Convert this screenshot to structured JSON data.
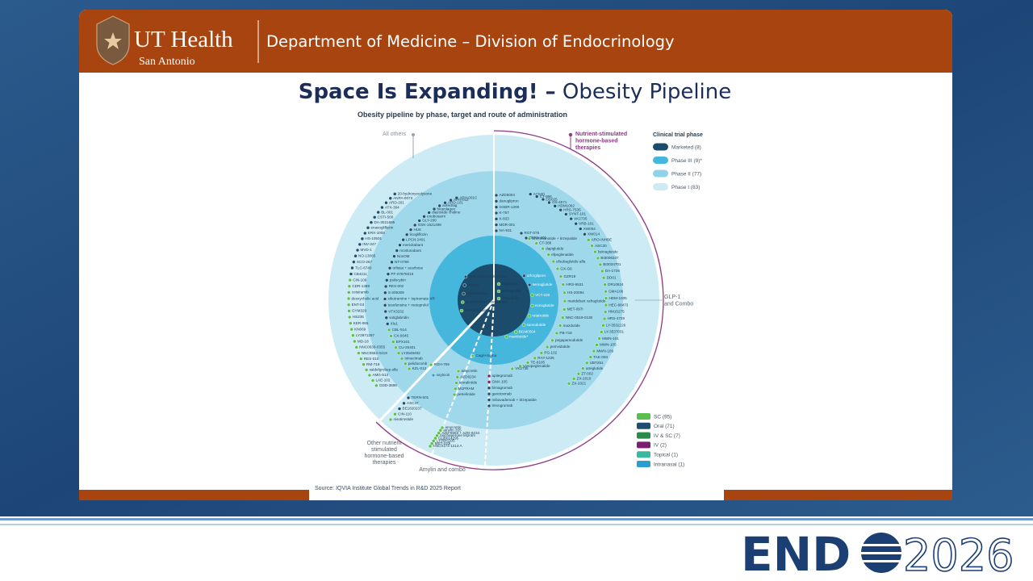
{
  "header": {
    "logo_name": "UT Health",
    "logo_location": "San Antonio",
    "department": "Department of Medicine – Division of Endocrinology"
  },
  "slide": {
    "title_bold": "Space Is Expanding! –",
    "title_rest": "Obesity Pipeline",
    "chart_title": "Obesity pipeline by phase, target and route of administration",
    "source": "Source: IQVIA Institute Global Trends in R&D 2025  Report"
  },
  "segments": {
    "all_others": "All others",
    "nsh": [
      "Nutrient-stimulated",
      "hormone-based",
      "therapies"
    ],
    "glp1": [
      "GLP-1",
      "and Combo"
    ],
    "other_nsh": [
      "Other nutrient",
      "stimulated",
      "hormone-based",
      "therapies"
    ],
    "amylin": "Amylin and combo"
  },
  "phase_legend": {
    "title": "Clinical trial phase",
    "items": [
      "Marketed (8)",
      "Phase III (9)*",
      "Phase II (77)",
      "Phase I (83)"
    ]
  },
  "route_legend": {
    "items": [
      "SC (95)",
      "Oral (71)",
      "IV & SC (7)",
      "IV (2)",
      "Topical (1)",
      "Intranasal (1)"
    ]
  },
  "drug_groups": [
    {
      "items": [
        "20-hydroxyecdysone",
        "ANPA-0073",
        "ARD-201",
        "ATX-304",
        "BL-001",
        "CSTI-500",
        "DA-3021685",
        "enavogliflozin",
        "ERX-1000",
        "HS-10501",
        "INV-347",
        "MVD-1",
        "NO-13065",
        "SCO-267",
        "TLC-6740",
        "CB4211",
        "CIN-109",
        "CDR-1389",
        "cotsiramib",
        "deoxycholic acid",
        "ENT-03",
        "GYM329",
        "HS235",
        "KER-065",
        "KN069",
        "LY3971297",
        "MD-18",
        "NNC0638-0355",
        "NNC0662-0419",
        "RES-010",
        "RM-718",
        "saldefgrobep alfa",
        "AMG-513",
        "LAE-102",
        "GDD-3898"
      ]
    },
    {
      "items": [
        "APH-001C",
        "APH-012",
        "ARD-101",
        "aofedrag",
        "bioenlagon",
        "diazoxide choline",
        "enobosarm",
        "GLY-200",
        "GSK-1521498",
        "HU6",
        "licogliflozin",
        "LPCN 2401",
        "mericitabant",
        "monlunabant",
        "NovOM",
        "NT-0796",
        "orlistat + acarbose",
        "PF-07976016",
        "psilocybin",
        "REX-002",
        "S-309309",
        "sibutramine + topiramate XR",
        "tesofensine + metoprolol",
        "VTX3232",
        "vutiglabridin",
        "Xlu1",
        "CBL-514",
        "CX-9045",
        "EPX101",
        "CU-20401",
        "LY3549492",
        "nimacimab",
        "pelidocomb",
        "KZL-012"
      ]
    },
    {
      "items": [
        "TERN-501",
        "ASC47",
        "BE1820237",
        "CIN-110",
        "nisotirostide"
      ]
    },
    {
      "items": [
        "amycretin",
        "amylin 355",
        "AZD-9550 + AZD-6234",
        "biochaperone lispram",
        "GUB014295",
        "LY3541105",
        "MET-233i",
        "NNC0174-1213 A"
      ]
    },
    {
      "items": [
        "amycretin",
        "AZD6234",
        "eloralintide",
        "M1PRAM",
        "petrelintide"
      ]
    },
    {
      "items": [
        "apitegromab",
        "GMA 105",
        "bimagrumab",
        "garetosmab",
        "mibavademab + tirzepatide",
        "trevogrumab"
      ]
    },
    {
      "items": [
        "AC530",
        "CT-996",
        "DD025",
        "GS-4571",
        "HDM1002",
        "HRS-7535",
        "SYNT-101",
        "VK2735",
        "VRB-101",
        "XW004",
        "XW014",
        "ARO-INHBE",
        "ASC30",
        "beinaglutide",
        "BI3006337",
        "BI3034701",
        "DA-1726",
        "DD01",
        "DR10624",
        "GMA106",
        "HDM-1005",
        "HEC-88473",
        "HM15275",
        "HRS-4729",
        "LY-3532226",
        "LY-3537031",
        "MWN-101",
        "MWN-105",
        "MWN-109",
        "TAK-094",
        "UBT251",
        "utreglutide",
        "ZT-002",
        "ZX-2010",
        "ZX-2021"
      ]
    },
    {
      "items": [
        "AZD5004",
        "danuglipron",
        "GSBR-1290",
        "K-757",
        "K-833",
        "MDR-001",
        "NA-931"
      ]
    },
    {
      "items": [
        "RGT-075",
        "TERN-601"
      ]
    },
    {
      "items": [
        "bremelanotide + tirzepatide",
        "CT-388",
        "dapiglutide",
        "efpeglenatide",
        "efsubaglutide alfa",
        "GX-G6",
        "GZR18",
        "HRS-9531",
        "HS-20094",
        "maridebart cafraglutide",
        "MET-097i",
        "NNC-0519-0130",
        "mazdutide",
        "PB-718",
        "pegapamodutide",
        "pemvidutide",
        "PG-102",
        "RAY-1225",
        "TE-8105",
        "vasopeglenatide",
        "VK2735"
      ]
    },
    {
      "items": [
        "orforglipron",
        "semaglutide",
        "VCT-220",
        "ecnoglutide",
        "retatrutide",
        "survodutide",
        "BGM0504",
        "maridutide*"
      ]
    },
    {
      "items": [
        "bupropion + naltrexone",
        "orlistat",
        "phentermine",
        "phentermine + topiramate",
        "setmelanotide"
      ]
    },
    {
      "items": [
        "liraglutide",
        "semaglutide",
        "tirzepatide"
      ]
    },
    {
      "items": [
        "Cagri+Sema",
        "RGH-706",
        "oxytocin"
      ]
    }
  ],
  "footer": {
    "logo_left": "END",
    "logo_right": "2026"
  }
}
